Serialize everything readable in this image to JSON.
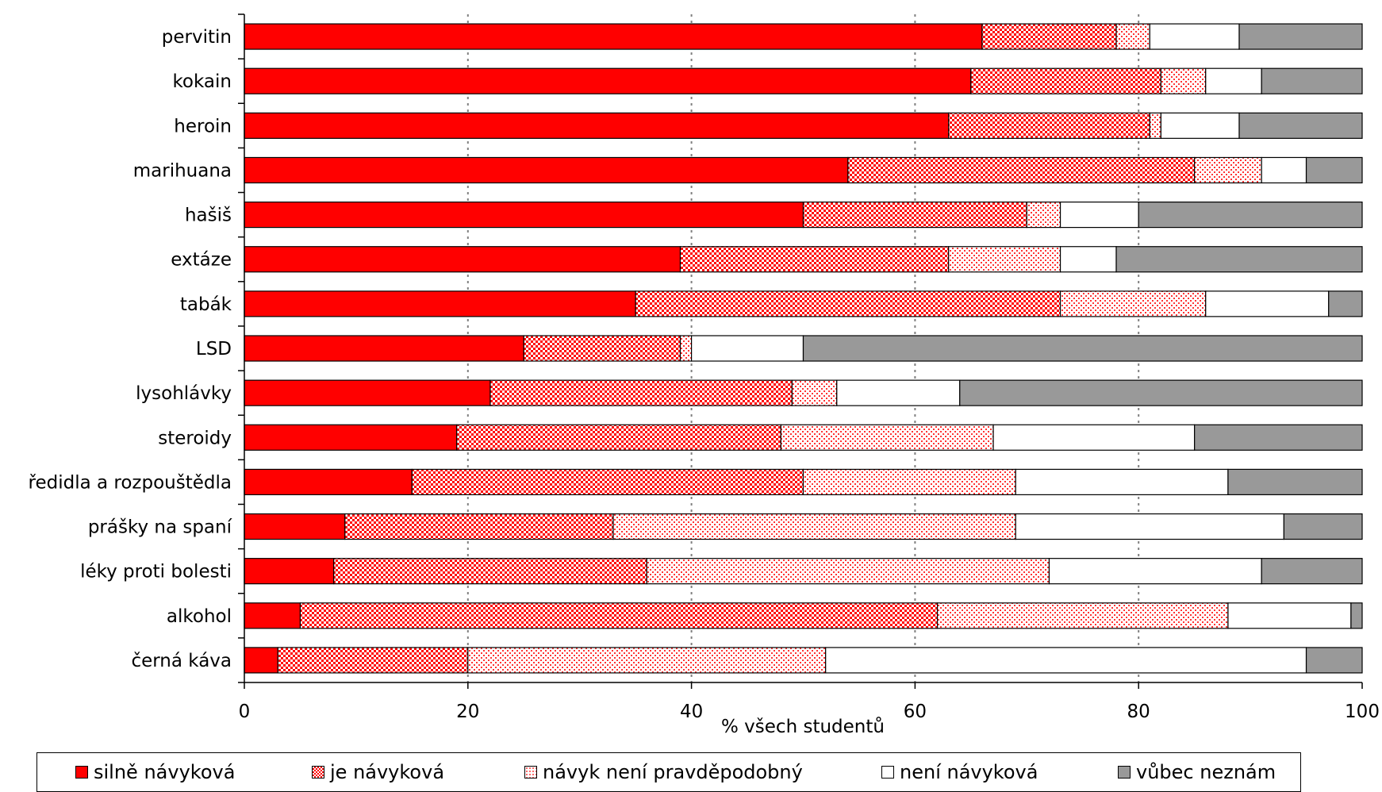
{
  "chart_data": {
    "type": "bar",
    "orientation": "horizontal",
    "stacked": true,
    "categories": [
      "pervitin",
      "kokain",
      "heroin",
      "marihuana",
      "hašiš",
      "extáze",
      "tabák",
      "LSD",
      "lysohlávky",
      "steroidy",
      "ředidla a rozpouštědla",
      "prášky na spaní",
      "léky proti bolesti",
      "alkohol",
      "černá káva"
    ],
    "series": [
      {
        "name": "silně návyková",
        "color": "#ff0000",
        "pattern": "solid",
        "values": [
          66,
          65,
          63,
          54,
          50,
          39,
          35,
          25,
          22,
          19,
          15,
          9,
          8,
          5,
          3
        ]
      },
      {
        "name": "je návyková",
        "color": "#ff0000",
        "pattern": "dense-check",
        "values": [
          12,
          17,
          18,
          31,
          20,
          24,
          38,
          14,
          27,
          29,
          35,
          24,
          28,
          57,
          17
        ]
      },
      {
        "name": "návyk není pravděpodobný",
        "color": "#ff0000",
        "pattern": "light-dots",
        "values": [
          3,
          4,
          1,
          6,
          3,
          10,
          13,
          1,
          4,
          19,
          19,
          36,
          36,
          26,
          32
        ]
      },
      {
        "name": "není návyková",
        "color": "#ffffff",
        "pattern": "solid",
        "values": [
          8,
          5,
          7,
          4,
          7,
          5,
          11,
          10,
          11,
          18,
          19,
          24,
          19,
          11,
          43
        ]
      },
      {
        "name": "vůbec neznám",
        "color": "#999999",
        "pattern": "solid",
        "values": [
          11,
          9,
          11,
          5,
          20,
          22,
          3,
          50,
          36,
          15,
          12,
          7,
          9,
          1,
          5
        ]
      }
    ],
    "xlabel": "% všech studentů",
    "xlim": [
      0,
      100
    ],
    "xticks": [
      "0",
      "20",
      "40",
      "60",
      "80",
      "100"
    ],
    "grid": "vertical dashed",
    "legend_position": "bottom"
  }
}
